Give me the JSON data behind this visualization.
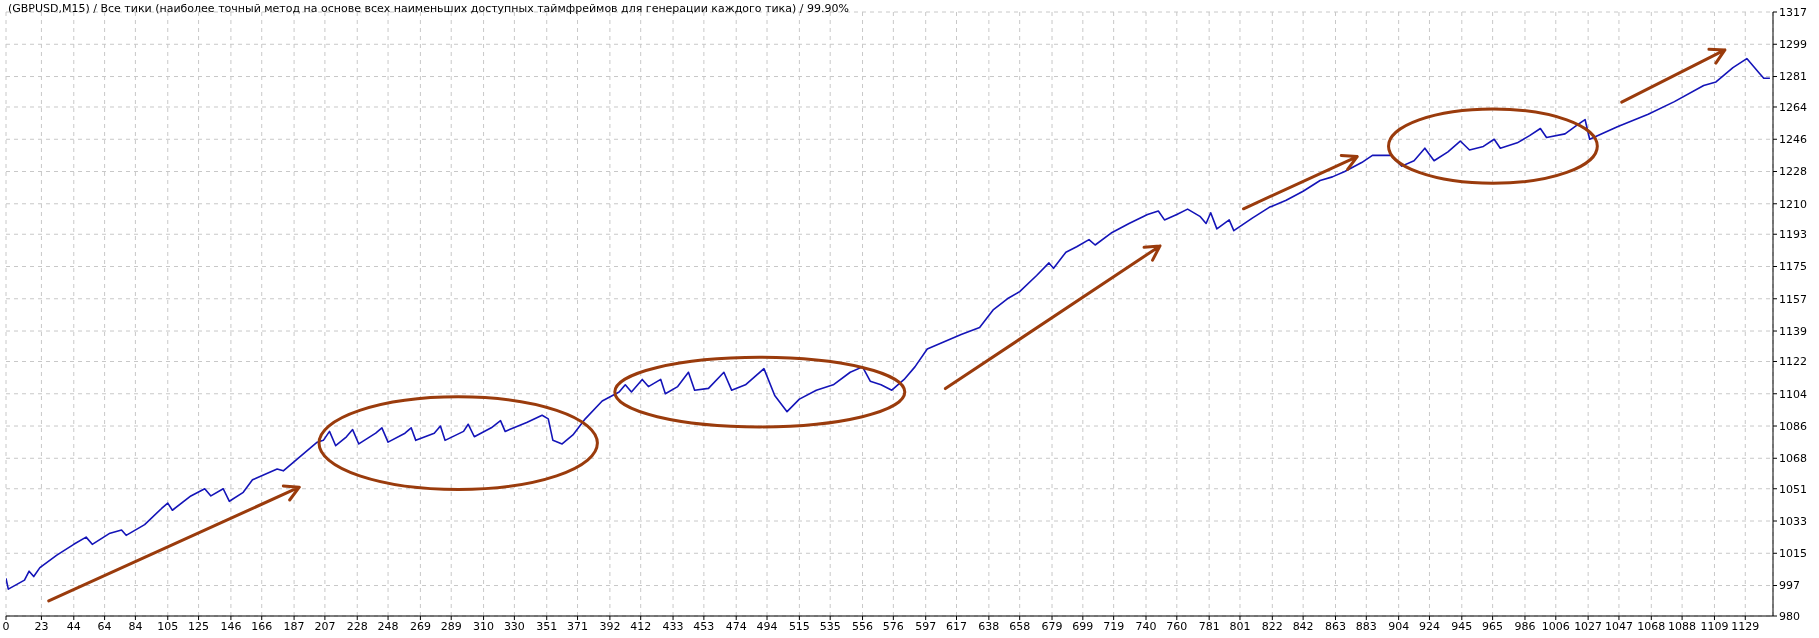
{
  "chart_data": {
    "type": "line",
    "title": "(GBPUSD,M15) / Все тики (наиболее точный метод на основе всех наименьших доступных таймфреймов для генерации каждого тика) / 99.90%",
    "x": [
      0,
      1.5,
      12,
      15,
      18,
      22,
      33,
      44,
      52,
      56,
      67,
      75,
      78,
      90,
      101,
      105,
      108,
      120,
      129,
      133,
      141,
      145,
      154,
      160,
      176,
      180,
      202,
      206,
      210,
      214,
      221,
      225,
      229,
      240,
      244,
      248,
      259,
      263,
      266,
      278,
      282,
      285,
      297,
      300,
      304,
      315,
      321,
      324,
      338,
      348,
      352,
      355,
      361,
      368,
      376,
      387,
      398,
      402,
      406,
      413,
      417,
      425,
      428,
      436,
      443,
      447,
      456,
      466,
      471,
      480,
      492,
      499,
      507,
      515,
      526,
      537,
      548,
      556,
      561,
      568,
      575,
      583,
      590,
      598,
      609,
      620,
      632,
      641,
      650,
      658,
      669,
      677,
      680,
      688,
      695,
      703,
      707,
      718,
      729,
      741,
      748,
      752,
      760,
      767,
      775,
      779,
      782,
      786,
      794,
      797,
      809,
      820,
      831,
      842,
      853,
      861,
      869,
      880,
      887,
      899,
      906,
      914,
      921,
      927,
      936,
      944,
      950,
      959,
      966,
      970,
      981,
      989,
      996,
      1000,
      1012,
      1020,
      1025,
      1028,
      1046,
      1066,
      1083,
      1102,
      1110,
      1121,
      1130,
      1134,
      1138,
      1141,
      1145
    ],
    "series": [
      {
        "color": "#1414b8",
        "values": [
          1001,
          995,
          1000,
          1005,
          1002,
          1007,
          1014,
          1020,
          1024,
          1020,
          1026,
          1028,
          1025,
          1031,
          1040,
          1043,
          1039,
          1047,
          1051,
          1047,
          1051,
          1044,
          1049,
          1056,
          1062,
          1061,
          1077,
          1078,
          1083,
          1075,
          1080,
          1084,
          1076,
          1082,
          1085,
          1077,
          1082,
          1085,
          1078,
          1082,
          1086,
          1078,
          1083,
          1087,
          1080,
          1085,
          1089,
          1083,
          1088,
          1092,
          1090,
          1078,
          1076,
          1081,
          1090,
          1100,
          1105,
          1109,
          1105,
          1112,
          1108,
          1112,
          1104,
          1108,
          1116,
          1106,
          1107,
          1116,
          1106,
          1109,
          1118,
          1103,
          1094,
          1101,
          1106,
          1109,
          1116,
          1119,
          1111,
          1109,
          1106,
          1112,
          1119,
          1129,
          1133,
          1137,
          1141,
          1151,
          1157,
          1161,
          1170,
          1177,
          1174,
          1183,
          1186,
          1190,
          1187,
          1194,
          1199,
          1204,
          1206,
          1201,
          1204,
          1207,
          1203,
          1199,
          1205,
          1196,
          1201,
          1195,
          1202,
          1208,
          1212,
          1217,
          1223,
          1225,
          1228,
          1233,
          1237,
          1237,
          1231,
          1234,
          1241,
          1234,
          1239,
          1245,
          1240,
          1242,
          1246,
          1241,
          1244,
          1248,
          1252,
          1247,
          1249,
          1254,
          1257,
          1246,
          1253,
          1260,
          1267,
          1276,
          1278,
          1286,
          1291,
          1287,
          1283,
          1280,
          1280
        ]
      }
    ],
    "xlim": [
      0,
      1147
    ],
    "xticks": [
      0,
      23,
      44,
      64,
      84,
      105,
      125,
      146,
      166,
      187,
      207,
      228,
      248,
      269,
      289,
      310,
      330,
      351,
      371,
      392,
      412,
      433,
      453,
      474,
      494,
      515,
      535,
      556,
      576,
      597,
      617,
      638,
      658,
      679,
      699,
      719,
      740,
      760,
      781,
      801,
      822,
      842,
      863,
      883,
      904,
      924,
      945,
      965,
      986,
      1006,
      1027,
      1047,
      1068,
      1088,
      1109,
      1129
    ],
    "ylim": [
      980,
      1317
    ],
    "yticks": [
      980,
      997,
      1015,
      1033,
      1051,
      1068,
      1086,
      1104,
      1122,
      1139,
      1157,
      1175,
      1193,
      1210,
      1228,
      1246,
      1264,
      1281,
      1299,
      1317
    ],
    "grid": true,
    "legend": false,
    "marker": "none",
    "line_style": "solid"
  }
}
